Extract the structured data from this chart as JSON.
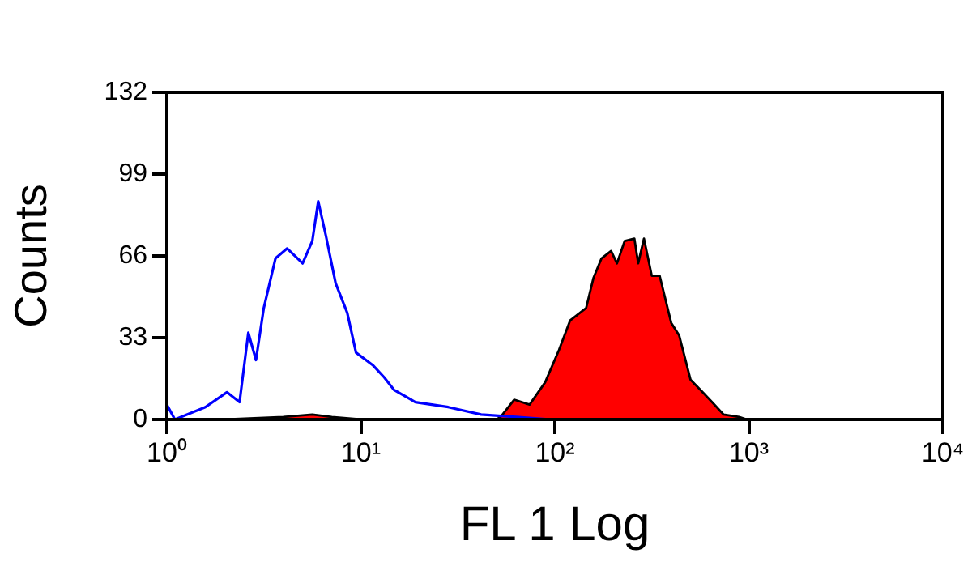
{
  "chart_data": {
    "type": "area",
    "xlabel": "FL 1 Log",
    "ylabel": "Counts",
    "log": "x",
    "grid": false,
    "legend": false,
    "xlim": [
      1,
      10000
    ],
    "xticks": [
      {
        "value": 1,
        "label": "10⁰"
      },
      {
        "value": 10,
        "label": "10¹"
      },
      {
        "value": 100,
        "label": "10²"
      },
      {
        "value": 1000,
        "label": "10³"
      },
      {
        "value": 10000,
        "label": "10⁴"
      }
    ],
    "ylim": [
      0,
      132
    ],
    "yticks": [
      0,
      33,
      66,
      99,
      132
    ],
    "series": [
      {
        "type": "line",
        "color": "#0000ff",
        "x": [
          1,
          1.1,
          1.58,
          2.04,
          2.37,
          2.63,
          2.88,
          3.16,
          3.63,
          4.17,
          5.01,
          5.62,
          6.03,
          6.61,
          7.41,
          8.51,
          9.44,
          11.5,
          13.2,
          14.8,
          19.1,
          28.2,
          41.7,
          63.1,
          95.5
        ],
        "values": [
          6,
          0,
          5,
          11,
          7,
          35,
          24,
          45,
          65,
          69,
          63,
          72,
          88,
          74,
          55,
          43,
          27,
          22,
          17,
          12,
          7,
          5,
          2,
          1,
          0
        ]
      },
      {
        "type": "area",
        "color": "#ff0000",
        "x": [
          2,
          3.98,
          5.62,
          7.08,
          10,
          50,
          52.5,
          61.7,
          74.1,
          89.1,
          105,
          120,
          145,
          158,
          174,
          195,
          209,
          229,
          257,
          269,
          288,
          316,
          347,
          398,
          437,
          501,
          562,
          646,
          741,
          891,
          977
        ],
        "values": [
          0,
          1,
          2,
          1,
          0,
          0,
          1,
          8,
          6,
          15,
          28,
          40,
          45,
          57,
          65,
          68,
          63,
          72,
          73,
          63,
          73,
          58,
          58,
          39,
          34,
          16,
          12,
          7,
          2,
          1,
          0
        ]
      }
    ]
  }
}
